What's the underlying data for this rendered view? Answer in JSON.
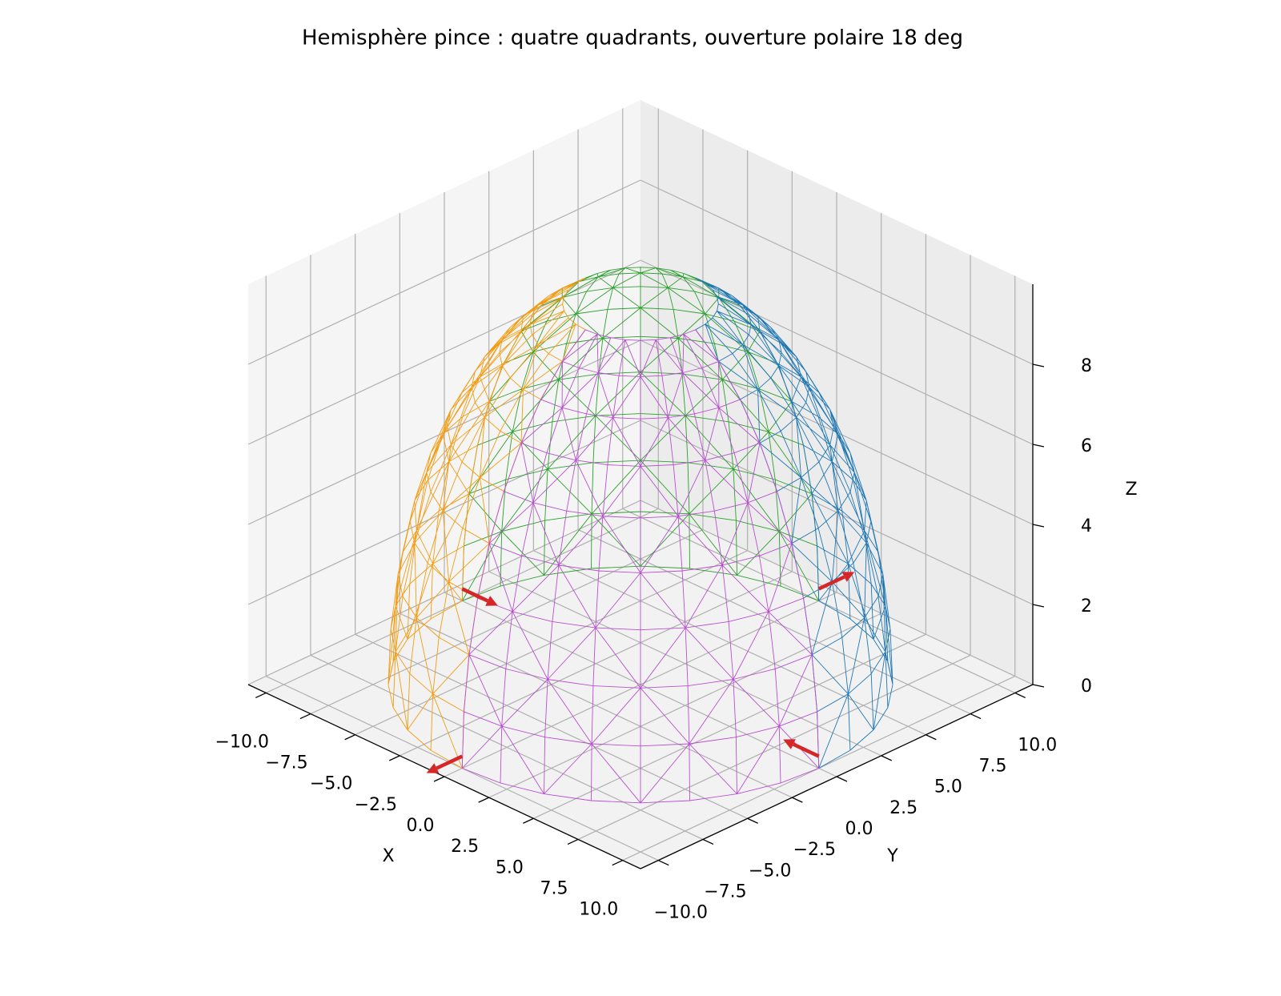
{
  "chart_data": {
    "type": "wireframe",
    "title": "Hemisphère pince : quatre quadrants, ouverture polaire 18 deg",
    "xlabel": "X",
    "ylabel": "Y",
    "zlabel": "Z",
    "radius": 10,
    "polar_opening_deg": 18,
    "xlim": [
      -11,
      11
    ],
    "ylim": [
      -11,
      11
    ],
    "zlim": [
      0,
      10
    ],
    "xticks": [
      {
        "value": -10,
        "label": "−10.0"
      },
      {
        "value": -7.5,
        "label": "−7.5"
      },
      {
        "value": -5,
        "label": "−5.0"
      },
      {
        "value": -2.5,
        "label": "−2.5"
      },
      {
        "value": 0,
        "label": "0.0"
      },
      {
        "value": 2.5,
        "label": "2.5"
      },
      {
        "value": 5,
        "label": "5.0"
      },
      {
        "value": 7.5,
        "label": "7.5"
      },
      {
        "value": 10,
        "label": "10.0"
      }
    ],
    "yticks": [
      {
        "value": -10,
        "label": "−10.0"
      },
      {
        "value": -7.5,
        "label": "−7.5"
      },
      {
        "value": -5,
        "label": "−5.0"
      },
      {
        "value": -2.5,
        "label": "−2.5"
      },
      {
        "value": 0,
        "label": "0.0"
      },
      {
        "value": 2.5,
        "label": "2.5"
      },
      {
        "value": 5,
        "label": "5.0"
      },
      {
        "value": 7.5,
        "label": "7.5"
      },
      {
        "value": 10,
        "label": "10.0"
      }
    ],
    "zticks": [
      0,
      2,
      4,
      6,
      8
    ],
    "grid": true,
    "series": [
      {
        "color": "#f39c12",
        "azimuth": [
          -180,
          -90
        ]
      },
      {
        "color": "#b94fd0",
        "azimuth": [
          -90,
          0
        ]
      },
      {
        "color": "#1f77b4",
        "azimuth": [
          0,
          90
        ]
      },
      {
        "color": "#2ca02c",
        "azimuth": [
          90,
          180
        ]
      }
    ],
    "arrow_color": "#d62728",
    "arrows": [
      {
        "x": 0,
        "y": -10,
        "z": 0.3,
        "u": 0,
        "v": -2,
        "w": 0
      },
      {
        "x": 10,
        "y": 0,
        "z": 0.3,
        "u": -2,
        "v": 0,
        "w": 0
      },
      {
        "x": -10,
        "y": 0,
        "z": 0.3,
        "u": 2,
        "v": 0,
        "w": 0
      },
      {
        "x": 0,
        "y": 10,
        "z": 0.3,
        "u": 0,
        "v": 2,
        "w": 0
      }
    ]
  }
}
